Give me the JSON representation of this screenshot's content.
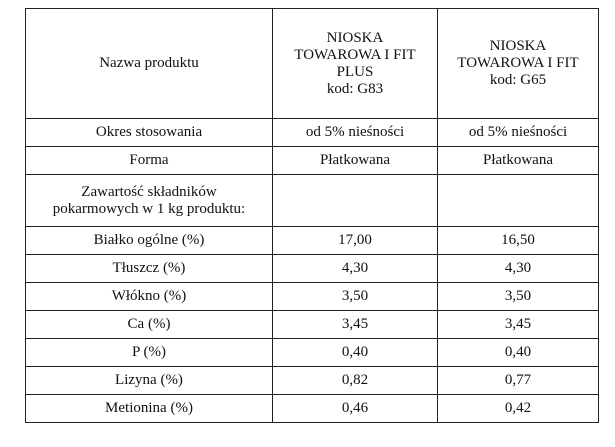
{
  "table": {
    "header": [
      [
        "Nazwa produktu"
      ],
      [
        "NIOSKA",
        "TOWAROWA I FIT",
        "PLUS",
        "kod: G83"
      ],
      [
        "NIOSKA",
        "TOWAROWA I FIT",
        "kod: G65"
      ]
    ],
    "rows": [
      [
        [
          "Okres stosowania"
        ],
        [
          "od 5% nieśności"
        ],
        [
          "od 5% nieśności"
        ]
      ],
      [
        [
          "Forma"
        ],
        [
          "Płatkowana"
        ],
        [
          "Płatkowana"
        ]
      ],
      [
        [
          "Zawartość składników",
          "pokarmowych w 1 kg produktu:"
        ]
      ],
      [
        [
          "Białko ogólne (%)"
        ],
        [
          "17,00"
        ],
        [
          "16,50"
        ]
      ],
      [
        [
          "Tłuszcz (%)"
        ],
        [
          "4,30"
        ],
        [
          "4,30"
        ]
      ],
      [
        [
          "Włókno (%)"
        ],
        [
          "3,50"
        ],
        [
          "3,50"
        ]
      ],
      [
        [
          "Ca (%)"
        ],
        [
          "3,45"
        ],
        [
          "3,45"
        ]
      ],
      [
        [
          "P (%)"
        ],
        [
          "0,40"
        ],
        [
          "0,40"
        ]
      ],
      [
        [
          "Lizyna (%)"
        ],
        [
          "0,82"
        ],
        [
          "0,77"
        ]
      ],
      [
        [
          "Metionina (%)"
        ],
        [
          "0,46"
        ],
        [
          "0,42"
        ]
      ]
    ]
  }
}
